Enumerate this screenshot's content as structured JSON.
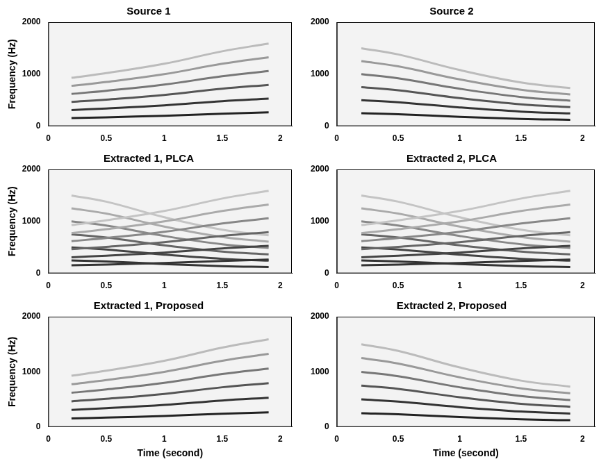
{
  "chart_data": [
    {
      "type": "line",
      "title": "Source 1",
      "y_label": "Frequency (Hz)",
      "x": [
        0.2,
        0.5,
        1.0,
        1.5,
        1.9
      ],
      "series": [
        {
          "color": "#222222",
          "values": [
            155,
            170,
            200,
            240,
            265
          ]
        },
        {
          "color": "#333333",
          "values": [
            310,
            340,
            400,
            480,
            530
          ]
        },
        {
          "color": "#555555",
          "values": [
            465,
            510,
            600,
            720,
            795
          ]
        },
        {
          "color": "#777777",
          "values": [
            620,
            680,
            800,
            960,
            1060
          ]
        },
        {
          "color": "#999999",
          "values": [
            775,
            850,
            1000,
            1200,
            1325
          ]
        },
        {
          "color": "#bbbbbb",
          "values": [
            930,
            1020,
            1200,
            1440,
            1590
          ]
        }
      ],
      "xlim": [
        0,
        2.1
      ],
      "xticks": [
        0,
        0.5,
        1,
        1.5,
        2
      ],
      "ylim": [
        0,
        2000
      ],
      "yticks": [
        0,
        1000,
        2000
      ],
      "grid": false
    },
    {
      "type": "line",
      "title": "Source 2",
      "x": [
        0.2,
        0.5,
        1.0,
        1.5,
        1.9
      ],
      "series": [
        {
          "color": "#222222",
          "values": [
            250,
            230,
            180,
            140,
            122
          ]
        },
        {
          "color": "#333333",
          "values": [
            500,
            460,
            360,
            280,
            244
          ]
        },
        {
          "color": "#555555",
          "values": [
            750,
            690,
            540,
            420,
            366
          ]
        },
        {
          "color": "#777777",
          "values": [
            1000,
            920,
            720,
            560,
            488
          ]
        },
        {
          "color": "#999999",
          "values": [
            1250,
            1150,
            900,
            700,
            610
          ]
        },
        {
          "color": "#bbbbbb",
          "values": [
            1500,
            1380,
            1080,
            840,
            732
          ]
        }
      ],
      "xlim": [
        0,
        2.1
      ],
      "xticks": [
        0,
        0.5,
        1,
        1.5,
        2
      ],
      "ylim": [
        0,
        2000
      ],
      "yticks": [
        0,
        1000,
        2000
      ],
      "grid": false
    },
    {
      "type": "line",
      "title": "Extracted 1, PLCA",
      "y_label": "Frequency (Hz)",
      "x": [
        0.2,
        0.5,
        1.0,
        1.5,
        1.9
      ],
      "series": [
        {
          "color": "#333333",
          "values": [
            155,
            170,
            200,
            240,
            265
          ]
        },
        {
          "color": "#444444",
          "values": [
            310,
            340,
            400,
            480,
            530
          ]
        },
        {
          "color": "#666666",
          "values": [
            465,
            510,
            600,
            720,
            795
          ]
        },
        {
          "color": "#888888",
          "values": [
            620,
            680,
            800,
            960,
            1060
          ]
        },
        {
          "color": "#aaaaaa",
          "values": [
            775,
            850,
            1000,
            1200,
            1325
          ]
        },
        {
          "color": "#c4c4c4",
          "values": [
            930,
            1020,
            1200,
            1440,
            1590
          ]
        },
        {
          "color": "#333333",
          "values": [
            250,
            230,
            180,
            140,
            122
          ]
        },
        {
          "color": "#444444",
          "values": [
            500,
            460,
            360,
            280,
            244
          ]
        },
        {
          "color": "#666666",
          "values": [
            750,
            690,
            540,
            420,
            366
          ]
        },
        {
          "color": "#888888",
          "values": [
            1000,
            920,
            720,
            560,
            488
          ]
        },
        {
          "color": "#aaaaaa",
          "values": [
            1250,
            1150,
            900,
            700,
            610
          ]
        },
        {
          "color": "#c4c4c4",
          "values": [
            1500,
            1380,
            1080,
            840,
            732
          ]
        }
      ],
      "xlim": [
        0,
        2.1
      ],
      "xticks": [
        0,
        0.5,
        1,
        1.5,
        2
      ],
      "ylim": [
        0,
        2000
      ],
      "yticks": [
        0,
        1000,
        2000
      ],
      "grid": false
    },
    {
      "type": "line",
      "title": "Extracted 2, PLCA",
      "x": [
        0.2,
        0.5,
        1.0,
        1.5,
        1.9
      ],
      "series": [
        {
          "color": "#333333",
          "values": [
            155,
            170,
            200,
            240,
            265
          ]
        },
        {
          "color": "#444444",
          "values": [
            310,
            340,
            400,
            480,
            530
          ]
        },
        {
          "color": "#666666",
          "values": [
            465,
            510,
            600,
            720,
            795
          ]
        },
        {
          "color": "#888888",
          "values": [
            620,
            680,
            800,
            960,
            1060
          ]
        },
        {
          "color": "#aaaaaa",
          "values": [
            775,
            850,
            1000,
            1200,
            1325
          ]
        },
        {
          "color": "#c4c4c4",
          "values": [
            930,
            1020,
            1200,
            1440,
            1590
          ]
        },
        {
          "color": "#333333",
          "values": [
            250,
            230,
            180,
            140,
            122
          ]
        },
        {
          "color": "#444444",
          "values": [
            500,
            460,
            360,
            280,
            244
          ]
        },
        {
          "color": "#666666",
          "values": [
            750,
            690,
            540,
            420,
            366
          ]
        },
        {
          "color": "#888888",
          "values": [
            1000,
            920,
            720,
            560,
            488
          ]
        },
        {
          "color": "#aaaaaa",
          "values": [
            1250,
            1150,
            900,
            700,
            610
          ]
        },
        {
          "color": "#c4c4c4",
          "values": [
            1500,
            1380,
            1080,
            840,
            732
          ]
        }
      ],
      "xlim": [
        0,
        2.1
      ],
      "xticks": [
        0,
        0.5,
        1,
        1.5,
        2
      ],
      "ylim": [
        0,
        2000
      ],
      "yticks": [
        0,
        1000,
        2000
      ],
      "grid": false
    },
    {
      "type": "line",
      "title": "Extracted 1, Proposed",
      "x_label": "Time (second)",
      "y_label": "Frequency (Hz)",
      "x": [
        0.2,
        0.5,
        1.0,
        1.5,
        1.9
      ],
      "series": [
        {
          "color": "#222222",
          "values": [
            155,
            170,
            200,
            240,
            265
          ]
        },
        {
          "color": "#333333",
          "values": [
            310,
            340,
            400,
            480,
            530
          ]
        },
        {
          "color": "#555555",
          "values": [
            465,
            510,
            600,
            720,
            795
          ]
        },
        {
          "color": "#777777",
          "values": [
            620,
            680,
            800,
            960,
            1060
          ]
        },
        {
          "color": "#999999",
          "values": [
            775,
            850,
            1000,
            1200,
            1325
          ]
        },
        {
          "color": "#bbbbbb",
          "values": [
            930,
            1020,
            1200,
            1440,
            1590
          ]
        }
      ],
      "xlim": [
        0,
        2.1
      ],
      "xticks": [
        0,
        0.5,
        1,
        1.5,
        2
      ],
      "ylim": [
        0,
        2000
      ],
      "yticks": [
        0,
        1000,
        2000
      ],
      "grid": false
    },
    {
      "type": "line",
      "title": "Extracted 2, Proposed",
      "x_label": "Time (second)",
      "x": [
        0.2,
        0.5,
        1.0,
        1.5,
        1.9
      ],
      "series": [
        {
          "color": "#222222",
          "values": [
            250,
            230,
            180,
            140,
            122
          ]
        },
        {
          "color": "#333333",
          "values": [
            500,
            460,
            360,
            280,
            244
          ]
        },
        {
          "color": "#555555",
          "values": [
            750,
            690,
            540,
            420,
            366
          ]
        },
        {
          "color": "#777777",
          "values": [
            1000,
            920,
            720,
            560,
            488
          ]
        },
        {
          "color": "#999999",
          "values": [
            1250,
            1150,
            900,
            700,
            610
          ]
        },
        {
          "color": "#bbbbbb",
          "values": [
            1500,
            1380,
            1080,
            840,
            732
          ]
        }
      ],
      "xlim": [
        0,
        2.1
      ],
      "xticks": [
        0,
        0.5,
        1,
        1.5,
        2
      ],
      "ylim": [
        0,
        2000
      ],
      "yticks": [
        0,
        1000,
        2000
      ],
      "grid": false
    }
  ]
}
